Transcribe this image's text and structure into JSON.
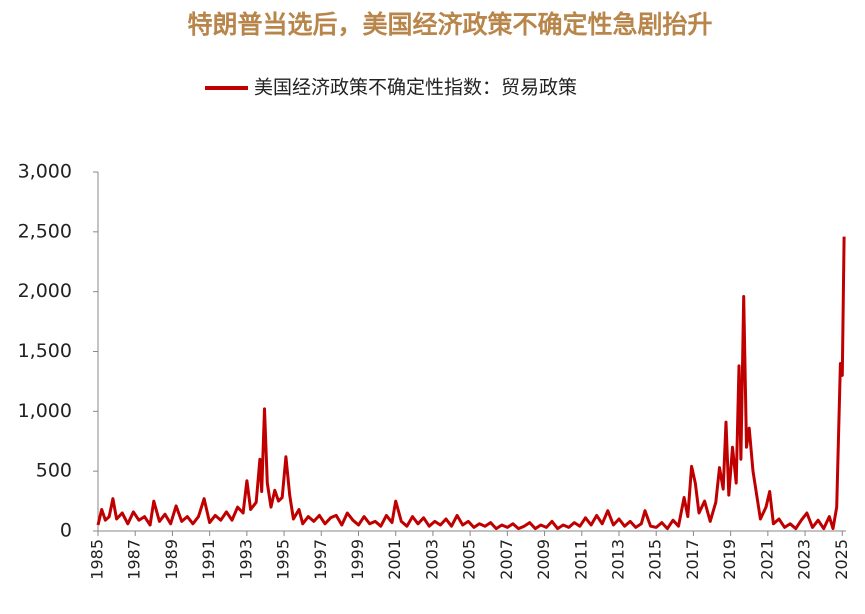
{
  "chart_data": {
    "type": "line",
    "title": "特朗普当选后，美国经济政策不确定性急剧抬升",
    "series": [
      {
        "name": "美国经济政策不确定性指数：贸易政策",
        "color": "#c00000",
        "x": [
          1985.0,
          1985.2,
          1985.4,
          1985.6,
          1985.8,
          1986.0,
          1986.3,
          1986.6,
          1986.9,
          1987.2,
          1987.5,
          1987.8,
          1988.0,
          1988.3,
          1988.6,
          1988.9,
          1989.2,
          1989.5,
          1989.8,
          1990.1,
          1990.4,
          1990.7,
          1991.0,
          1991.3,
          1991.6,
          1991.9,
          1992.2,
          1992.5,
          1992.8,
          1993.0,
          1993.2,
          1993.5,
          1993.7,
          1993.8,
          1993.95,
          1994.1,
          1994.3,
          1994.5,
          1994.7,
          1994.9,
          1995.1,
          1995.3,
          1995.5,
          1995.8,
          1996.0,
          1996.3,
          1996.6,
          1996.9,
          1997.2,
          1997.5,
          1997.8,
          1998.1,
          1998.4,
          1998.7,
          1999.0,
          1999.3,
          1999.6,
          1999.9,
          2000.2,
          2000.5,
          2000.8,
          2001.0,
          2001.3,
          2001.6,
          2001.9,
          2002.2,
          2002.5,
          2002.8,
          2003.1,
          2003.4,
          2003.7,
          2004.0,
          2004.3,
          2004.6,
          2004.9,
          2005.2,
          2005.5,
          2005.8,
          2006.1,
          2006.4,
          2006.7,
          2007.0,
          2007.3,
          2007.6,
          2007.9,
          2008.2,
          2008.5,
          2008.8,
          2009.1,
          2009.4,
          2009.7,
          2010.0,
          2010.3,
          2010.6,
          2010.9,
          2011.2,
          2011.5,
          2011.8,
          2012.1,
          2012.4,
          2012.7,
          2013.0,
          2013.3,
          2013.6,
          2013.9,
          2014.2,
          2014.4,
          2014.7,
          2015.0,
          2015.3,
          2015.6,
          2015.9,
          2016.2,
          2016.5,
          2016.7,
          2016.9,
          2017.1,
          2017.3,
          2017.6,
          2017.9,
          2018.2,
          2018.4,
          2018.6,
          2018.75,
          2018.9,
          2019.1,
          2019.3,
          2019.45,
          2019.55,
          2019.7,
          2019.85,
          2020.0,
          2020.2,
          2020.4,
          2020.6,
          2020.9,
          2021.1,
          2021.3,
          2021.6,
          2021.9,
          2022.2,
          2022.5,
          2022.8,
          2023.1,
          2023.4,
          2023.7,
          2024.0,
          2024.3,
          2024.5,
          2024.7,
          2024.9,
          2025.0,
          2025.1
        ],
        "values": [
          50,
          180,
          90,
          120,
          270,
          100,
          150,
          60,
          160,
          90,
          120,
          50,
          250,
          80,
          140,
          60,
          210,
          80,
          120,
          60,
          120,
          270,
          70,
          130,
          90,
          160,
          90,
          200,
          150,
          420,
          180,
          240,
          600,
          330,
          1020,
          400,
          200,
          340,
          250,
          280,
          620,
          300,
          100,
          180,
          60,
          120,
          80,
          130,
          60,
          110,
          130,
          50,
          150,
          90,
          50,
          120,
          60,
          80,
          40,
          130,
          70,
          250,
          80,
          40,
          120,
          60,
          110,
          40,
          80,
          50,
          100,
          40,
          130,
          50,
          80,
          30,
          60,
          40,
          70,
          20,
          50,
          30,
          60,
          20,
          40,
          70,
          20,
          50,
          30,
          80,
          20,
          50,
          30,
          70,
          40,
          110,
          50,
          130,
          60,
          170,
          50,
          100,
          40,
          80,
          30,
          60,
          170,
          40,
          30,
          70,
          20,
          90,
          40,
          280,
          120,
          540,
          400,
          150,
          250,
          80,
          240,
          530,
          350,
          910,
          300,
          700,
          400,
          1380,
          600,
          1960,
          700,
          860,
          500,
          300,
          100,
          200,
          330,
          60,
          100,
          30,
          60,
          20,
          90,
          150,
          30,
          90,
          20,
          120,
          20,
          200,
          1400,
          1300,
          2460
        ]
      }
    ],
    "xlim": [
      1985,
      2025.2
    ],
    "xticks": [
      1985,
      1987,
      1989,
      1991,
      1993,
      1995,
      1997,
      1999,
      2001,
      2003,
      2005,
      2007,
      2009,
      2011,
      2013,
      2015,
      2017,
      2019,
      2021,
      2023,
      2025
    ],
    "ylim": [
      0,
      3000
    ],
    "yticks": [
      0,
      500,
      {
        "value": 1000,
        "label": "1,000"
      },
      {
        "value": 1500,
        "label": "1,500"
      },
      {
        "value": 2000,
        "label": "2,000"
      },
      {
        "value": 2500,
        "label": "2,500"
      },
      {
        "value": 3000,
        "label": "3,000"
      }
    ],
    "grid": false
  }
}
